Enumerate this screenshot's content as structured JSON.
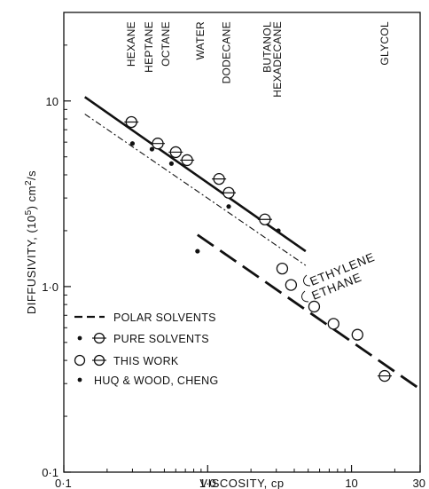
{
  "chart_data": {
    "type": "scatter",
    "xscale": "log",
    "yscale": "log",
    "xlim": [
      0.1,
      30
    ],
    "ylim": [
      0.1,
      30
    ],
    "xlabel": "VISCOSITY, cp",
    "ylabel_base": "DIFFUSIVITY, (10",
    "ylabel_sup1": "5",
    "ylabel_mid": ") cm",
    "ylabel_sup2": "2",
    "ylabel_end": "/s",
    "xticks": [
      {
        "value": 0.1,
        "label": "0·1"
      },
      {
        "value": 1.0,
        "label": "1·0"
      },
      {
        "value": 10,
        "label": "10"
      },
      {
        "value": 30,
        "label": "30"
      }
    ],
    "yticks": [
      {
        "value": 0.1,
        "label": "0·1"
      },
      {
        "value": 1.0,
        "label": "1·0"
      },
      {
        "value": 10,
        "label": "10"
      }
    ],
    "solvent_labels": [
      {
        "name": "HEXANE",
        "viscosity": 0.295
      },
      {
        "name": "HEPTANE",
        "viscosity": 0.39
      },
      {
        "name": "OCTANE",
        "viscosity": 0.51
      },
      {
        "name": "WATER",
        "viscosity": 0.89
      },
      {
        "name": "DODECANE",
        "viscosity": 1.35
      },
      {
        "name": "BUTANOL",
        "viscosity": 2.6
      },
      {
        "name": "HEXADECANE",
        "viscosity": 3.05
      },
      {
        "name": "GLYCOL",
        "viscosity": 17
      }
    ],
    "series": [
      {
        "name": "PURE SOLVENTS / THIS WORK",
        "marker": "open-circle-bar",
        "points": [
          {
            "x": 0.295,
            "y": 7.7
          },
          {
            "x": 0.45,
            "y": 5.9
          },
          {
            "x": 0.6,
            "y": 5.3
          },
          {
            "x": 0.72,
            "y": 4.8
          },
          {
            "x": 1.2,
            "y": 3.8
          },
          {
            "x": 1.4,
            "y": 3.2
          },
          {
            "x": 2.5,
            "y": 2.3
          },
          {
            "x": 17,
            "y": 0.33
          }
        ]
      },
      {
        "name": "THIS WORK",
        "marker": "open-circle",
        "points": [
          {
            "x": 3.3,
            "y": 1.25
          },
          {
            "x": 3.8,
            "y": 1.02
          },
          {
            "x": 5.5,
            "y": 0.78
          },
          {
            "x": 7.5,
            "y": 0.63
          },
          {
            "x": 11,
            "y": 0.55
          }
        ]
      },
      {
        "name": "HUQ & WOOD, CHENG",
        "marker": "filled-dot",
        "points": [
          {
            "x": 0.3,
            "y": 5.9
          },
          {
            "x": 0.41,
            "y": 5.5
          },
          {
            "x": 0.56,
            "y": 4.6
          },
          {
            "x": 0.85,
            "y": 1.55
          },
          {
            "x": 1.4,
            "y": 2.7
          },
          {
            "x": 3.1,
            "y": 2.0
          }
        ]
      }
    ],
    "lines": [
      {
        "name": "ETHYLENE",
        "style": "solid",
        "from": [
          0.14,
          10.5
        ],
        "to": [
          4.8,
          1.55
        ]
      },
      {
        "name": "ETHANE",
        "style": "dash-dot",
        "from": [
          0.14,
          8.5
        ],
        "to": [
          4.8,
          1.3
        ]
      },
      {
        "name": "POLAR SOLVENTS",
        "style": "long-dash",
        "from": [
          0.85,
          1.9
        ],
        "to": [
          30,
          0.28
        ]
      }
    ],
    "annotations": [
      "ETHYLENE",
      "ETHANE"
    ],
    "legend": {
      "position": "lower-left",
      "entries": [
        {
          "label": "POLAR SOLVENTS",
          "marker": "dash"
        },
        {
          "label": "PURE SOLVENTS",
          "marker": "dot-and-circle"
        },
        {
          "label": "THIS WORK",
          "marker": "circle-and-circle"
        },
        {
          "label": "HUQ & WOOD, CHENG",
          "marker": "dot"
        }
      ]
    }
  }
}
